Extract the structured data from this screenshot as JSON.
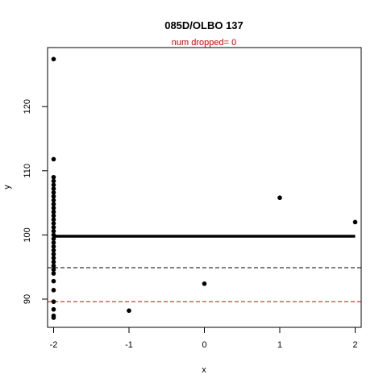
{
  "chart_data": {
    "type": "scatter",
    "title": "085D/OLBO 137",
    "subtitle": "num dropped= 0",
    "xlabel": "x",
    "ylabel": "y",
    "xlim": [
      -2.08,
      2.08
    ],
    "ylim": [
      85.6,
      129.2
    ],
    "x_ticks": [
      -2,
      -1,
      0,
      1,
      2
    ],
    "y_ticks": [
      90,
      100,
      110,
      120
    ],
    "grid": false,
    "legend": "none",
    "colors": {
      "points": "#000000",
      "subtitle": "#cc0000",
      "hline_black": "#000000",
      "hline_red": "#cc0000"
    },
    "reference_lines": [
      {
        "y": 94.9,
        "style": "dashed",
        "color": "#000000"
      },
      {
        "y": 89.6,
        "style": "dashed",
        "color": "#cc0000"
      }
    ],
    "fit_line": {
      "x0": -2,
      "x1": 2,
      "y": 99.8
    },
    "points": [
      {
        "x": -2,
        "y": 127.4
      },
      {
        "x": -2,
        "y": 111.8
      },
      {
        "x": -2,
        "y": 109.0
      },
      {
        "x": -2,
        "y": 108.4
      },
      {
        "x": -2,
        "y": 107.8
      },
      {
        "x": -2,
        "y": 107.2
      },
      {
        "x": -2,
        "y": 106.6
      },
      {
        "x": -2,
        "y": 106.0
      },
      {
        "x": -2,
        "y": 105.4
      },
      {
        "x": -2,
        "y": 104.8
      },
      {
        "x": -2,
        "y": 104.2
      },
      {
        "x": -2,
        "y": 103.6
      },
      {
        "x": -2,
        "y": 103.0
      },
      {
        "x": -2,
        "y": 102.4
      },
      {
        "x": -2,
        "y": 101.8
      },
      {
        "x": -2,
        "y": 101.2
      },
      {
        "x": -2,
        "y": 100.6
      },
      {
        "x": -2,
        "y": 100.0
      },
      {
        "x": -2,
        "y": 99.4
      },
      {
        "x": -2,
        "y": 98.8
      },
      {
        "x": -2,
        "y": 98.2
      },
      {
        "x": -2,
        "y": 97.6
      },
      {
        "x": -2,
        "y": 97.0
      },
      {
        "x": -2,
        "y": 96.4
      },
      {
        "x": -2,
        "y": 95.8
      },
      {
        "x": -2,
        "y": 95.2
      },
      {
        "x": -2,
        "y": 94.6
      },
      {
        "x": -2,
        "y": 94.0
      },
      {
        "x": -2,
        "y": 92.8
      },
      {
        "x": -2,
        "y": 91.4
      },
      {
        "x": -2,
        "y": 89.6
      },
      {
        "x": -2,
        "y": 88.4
      },
      {
        "x": -2,
        "y": 87.4
      },
      {
        "x": -2,
        "y": 87.1
      },
      {
        "x": -1,
        "y": 88.2
      },
      {
        "x": 0,
        "y": 92.4
      },
      {
        "x": 1,
        "y": 105.8
      },
      {
        "x": 2,
        "y": 102.0
      }
    ]
  }
}
